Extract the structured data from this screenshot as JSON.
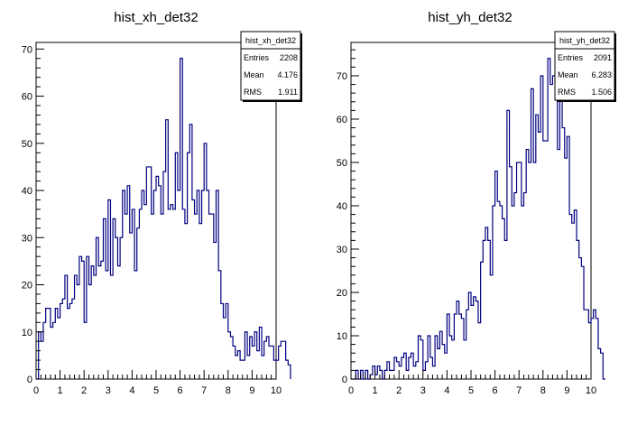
{
  "chart_data": [
    {
      "type": "histogram",
      "title": "hist_xh_det32",
      "xlim": [
        0,
        10
      ],
      "ylim": [
        0,
        71.4
      ],
      "x_ticks": [
        0,
        1,
        2,
        3,
        4,
        5,
        6,
        7,
        8,
        9,
        10
      ],
      "y_ticks": [
        10,
        20,
        30,
        40,
        50,
        60,
        70
      ],
      "bin_width": 0.1,
      "x_start": 0.0,
      "values": [
        0,
        10,
        8,
        12,
        15,
        15,
        11,
        12,
        15,
        13,
        16,
        17,
        22,
        15,
        16,
        17,
        22,
        20,
        26,
        25,
        12,
        26,
        20,
        24,
        22,
        30,
        24,
        25,
        34,
        23,
        38,
        22,
        34,
        30,
        24,
        30,
        40,
        35,
        41,
        31,
        36,
        23,
        32,
        36,
        40,
        37,
        45,
        45,
        35,
        40,
        43,
        41,
        35,
        44,
        55,
        36,
        37,
        36,
        48,
        40,
        68,
        36,
        33,
        48,
        54,
        38,
        35,
        40,
        33,
        40,
        50,
        40,
        35,
        35,
        29,
        40,
        23,
        16,
        13,
        16,
        10,
        9,
        7,
        5,
        6,
        4,
        4,
        10,
        5,
        9,
        7,
        10,
        6,
        11,
        5,
        8,
        9,
        7,
        7,
        4,
        4,
        7,
        8,
        8,
        4,
        3
      ],
      "stats": {
        "name": "hist_xh_det32",
        "rows": [
          {
            "label": "Entries",
            "value": "2208"
          },
          {
            "label": "Mean",
            "value": "4.176"
          },
          {
            "label": "RMS",
            "value": "1.911"
          }
        ]
      },
      "line_color": "#00007f",
      "legend_position": "top-right"
    },
    {
      "type": "histogram",
      "title": "hist_yh_det32",
      "xlim": [
        0,
        10
      ],
      "ylim": [
        0,
        77.7
      ],
      "x_ticks": [
        0,
        1,
        2,
        3,
        4,
        5,
        6,
        7,
        8,
        9,
        10
      ],
      "y_ticks": [
        10,
        20,
        30,
        40,
        50,
        60,
        70
      ],
      "bin_width": 0.1,
      "x_start": 0.0,
      "values": [
        0,
        0,
        2,
        0,
        2,
        0,
        2,
        0,
        1,
        3,
        1,
        3,
        2,
        0,
        2,
        4,
        2,
        2,
        5,
        4,
        3,
        5,
        6,
        2,
        5,
        6,
        3,
        4,
        10,
        9,
        2,
        4,
        10,
        5,
        3,
        10,
        7,
        11,
        8,
        6,
        15,
        10,
        9,
        15,
        18,
        15,
        14,
        9,
        16,
        20,
        17,
        19,
        18,
        13,
        27,
        32,
        35,
        32,
        24,
        40,
        48,
        41,
        40,
        37,
        32,
        62,
        49,
        40,
        43,
        50,
        50,
        40,
        43,
        53,
        50,
        67,
        50,
        61,
        57,
        70,
        55,
        55,
        74,
        68,
        70,
        66,
        53,
        69,
        58,
        51,
        56,
        38,
        36,
        39,
        32,
        28,
        26,
        16,
        16,
        13,
        14,
        16,
        14,
        7,
        6,
        0
      ],
      "stats": {
        "name": "hist_yh_det32",
        "rows": [
          {
            "label": "Entries",
            "value": "2091"
          },
          {
            "label": "Mean",
            "value": "6.283"
          },
          {
            "label": "RMS",
            "value": "1.506"
          }
        ]
      },
      "line_color": "#00007f",
      "legend_position": "top-right"
    }
  ]
}
